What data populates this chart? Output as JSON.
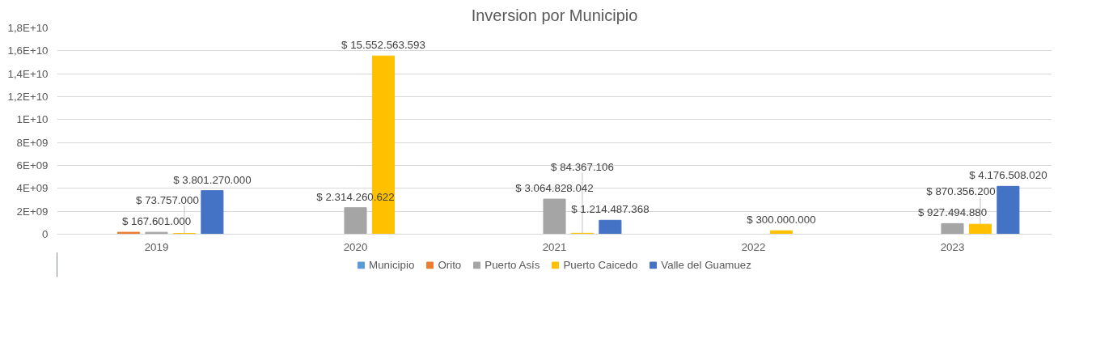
{
  "chart_data": {
    "type": "bar",
    "title": "Inversion por Municipio",
    "categories": [
      "2019",
      "2020",
      "2021",
      "2022",
      "2023"
    ],
    "series": [
      {
        "name": "Municipio",
        "color": "#5b9bd5",
        "values": [
          null,
          null,
          null,
          null,
          null
        ]
      },
      {
        "name": "Orito",
        "color": "#ed7d31",
        "values": [
          170000000,
          null,
          null,
          null,
          null
        ],
        "value_labels": [
          null,
          null,
          null,
          null,
          null
        ]
      },
      {
        "name": "Puerto Asís",
        "color": "#a5a5a5",
        "values": [
          167601000,
          2314260622,
          3064828042,
          null,
          927494880
        ],
        "value_labels": [
          "$ 167.601.000",
          "$ 2.314.260.622",
          "$ 3.064.828.042",
          null,
          "$ 927.494.880"
        ]
      },
      {
        "name": "Puerto Caicedo",
        "color": "#ffc000",
        "values": [
          73757000,
          15552563593,
          84367106,
          300000000,
          870356200
        ],
        "value_labels": [
          "$ 73.757.000",
          "$ 15.552.563.593",
          "$ 84.367.106",
          "$ 300.000.000",
          "$ 870.356.200"
        ]
      },
      {
        "name": "Valle del Guamuez",
        "color": "#4472c4",
        "values": [
          3801270000,
          null,
          1214487368,
          null,
          4176508020
        ],
        "value_labels": [
          "$ 3.801.270.000",
          null,
          "$ 1.214.487.368",
          null,
          "$ 4.176.508.020"
        ]
      }
    ],
    "ylim": [
      0,
      18000000000
    ],
    "yticks": [
      0,
      {
        "value": 2000000000,
        "label": "2E+09"
      },
      {
        "value": 4000000000,
        "label": "4E+09"
      },
      {
        "value": 6000000000,
        "label": "6E+09"
      },
      {
        "value": 8000000000,
        "label": "8E+09"
      },
      {
        "value": 10000000000,
        "label": "1E+10"
      },
      {
        "value": 12000000000,
        "label": "1,2E+10"
      },
      {
        "value": 14000000000,
        "label": "1,4E+10"
      },
      {
        "value": 16000000000,
        "label": "1,6E+10"
      },
      {
        "value": 18000000000,
        "label": "1,8E+10"
      }
    ],
    "grid": "y",
    "legend": "bottom"
  }
}
